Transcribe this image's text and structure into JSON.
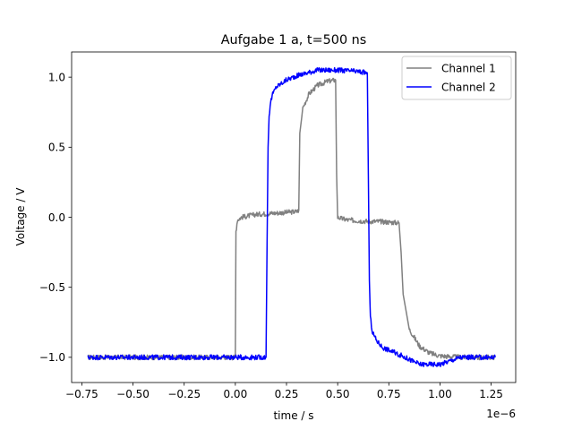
{
  "chart_data": {
    "type": "line",
    "title": "Aufgabe 1 a,  t=500 ns",
    "xlabel": "time / s",
    "ylabel": "Voltage / V",
    "x_offset_label": "1e−6",
    "xlim": [
      -8e-07,
      1.37e-06
    ],
    "ylim": [
      -1.18,
      1.18
    ],
    "xticks": [
      -7.5e-07,
      -5e-07,
      -2.5e-07,
      0,
      2.5e-07,
      5e-07,
      7.5e-07,
      1e-06,
      1.25e-06
    ],
    "xtick_labels": [
      "−0.75",
      "−0.50",
      "−0.25",
      "0.00",
      "0.25",
      "0.50",
      "0.75",
      "1.00",
      "1.25"
    ],
    "yticks": [
      -1.0,
      -0.5,
      0.0,
      0.5,
      1.0
    ],
    "ytick_labels": [
      "−1.0",
      "−0.5",
      "0.0",
      "0.5",
      "1.0"
    ],
    "grid": false,
    "legend_position": "top-right",
    "series": [
      {
        "name": "Channel 1",
        "color": "#808080",
        "x": [
          -7.2e-07,
          0,
          3e-09,
          1e-08,
          3e-08,
          1e-07,
          2e-07,
          3e-07,
          3.1e-07,
          3.15e-07,
          3.3e-07,
          3.6e-07,
          4e-07,
          4.5e-07,
          4.9e-07,
          4.95e-07,
          5e-07,
          5.2e-07,
          5.5e-07,
          6.5e-07,
          7e-07,
          8e-07,
          8.1e-07,
          8.2e-07,
          8.5e-07,
          9e-07,
          9.5e-07,
          1e-06,
          1.1e-06,
          1.27e-06
        ],
        "y": [
          -1.0,
          -1.0,
          -0.1,
          -0.02,
          0.0,
          0.02,
          0.03,
          0.04,
          0.05,
          0.6,
          0.78,
          0.88,
          0.94,
          0.97,
          0.98,
          0.3,
          0.0,
          -0.01,
          -0.02,
          -0.03,
          -0.03,
          -0.04,
          -0.25,
          -0.55,
          -0.8,
          -0.92,
          -0.97,
          -0.99,
          -1.0,
          -1.0
        ]
      },
      {
        "name": "Channel 2",
        "color": "#0000ff",
        "x": [
          -7.2e-07,
          1.5e-07,
          1.55e-07,
          1.6e-07,
          1.65e-07,
          1.7e-07,
          1.8e-07,
          2e-07,
          2.5e-07,
          3e-07,
          4e-07,
          5e-07,
          6e-07,
          6.45e-07,
          6.5e-07,
          6.55e-07,
          6.6e-07,
          6.7e-07,
          6.9e-07,
          7.2e-07,
          8e-07,
          9e-07,
          1e-06,
          1.1e-06,
          1.27e-06
        ],
        "y": [
          -1.0,
          -1.0,
          -0.2,
          0.5,
          0.72,
          0.8,
          0.87,
          0.93,
          0.98,
          1.01,
          1.05,
          1.05,
          1.04,
          1.03,
          0.3,
          -0.45,
          -0.72,
          -0.82,
          -0.88,
          -0.93,
          -0.98,
          -1.05,
          -1.05,
          -1.0,
          -1.0
        ]
      }
    ]
  }
}
